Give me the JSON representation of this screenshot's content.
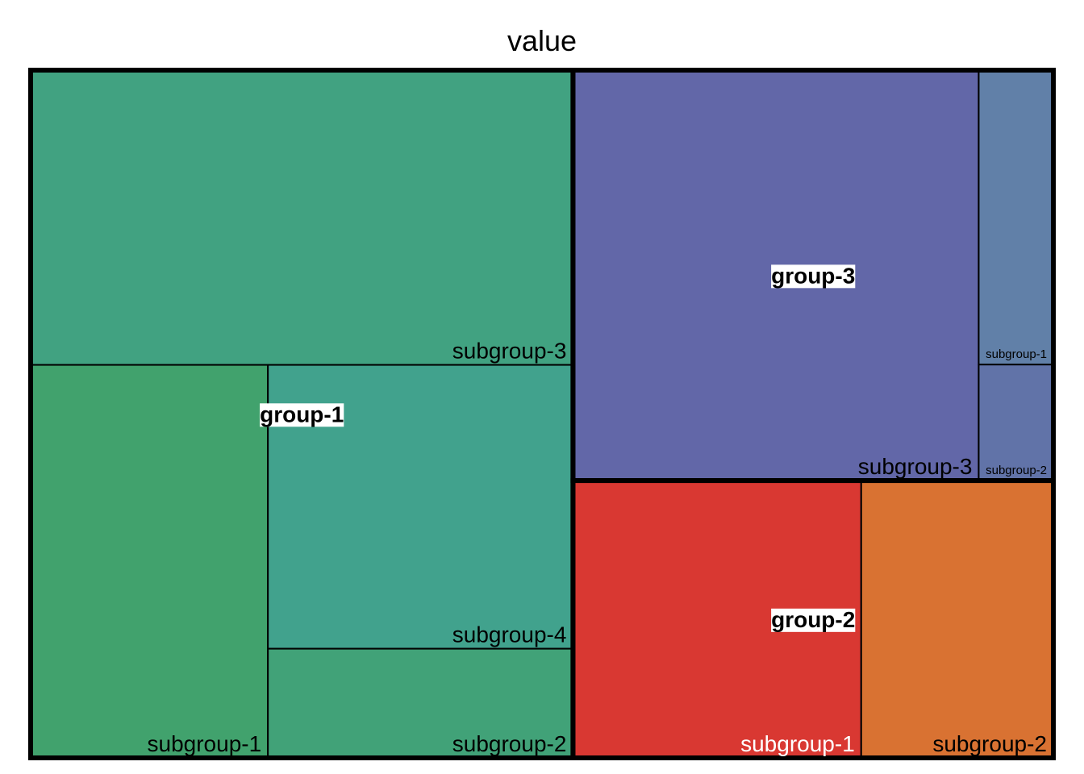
{
  "chart_data": {
    "type": "treemap",
    "title": "value",
    "groups": [
      {
        "name": "group-1",
        "subgroups": [
          {
            "name": "subgroup-3",
            "value": 24,
            "color": "#41a281"
          },
          {
            "name": "subgroup-1",
            "value": 14,
            "color": "#41a26d"
          },
          {
            "name": "subgroup-4",
            "value": 13,
            "color": "#41a28d"
          },
          {
            "name": "subgroup-2",
            "value": 5,
            "color": "#41a278"
          }
        ]
      },
      {
        "name": "group-3",
        "subgroups": [
          {
            "name": "subgroup-3",
            "value": 25,
            "color": "#6267a8"
          },
          {
            "name": "subgroup-1",
            "value": 3.3,
            "color": "#6180a8"
          },
          {
            "name": "subgroup-2",
            "value": 1.3,
            "color": "#6173a8"
          }
        ]
      },
      {
        "name": "group-2",
        "subgroups": [
          {
            "name": "subgroup-1",
            "value": 12,
            "color": "#d93832"
          },
          {
            "name": "subgroup-2",
            "value": 8,
            "color": "#d97232"
          }
        ]
      }
    ]
  }
}
